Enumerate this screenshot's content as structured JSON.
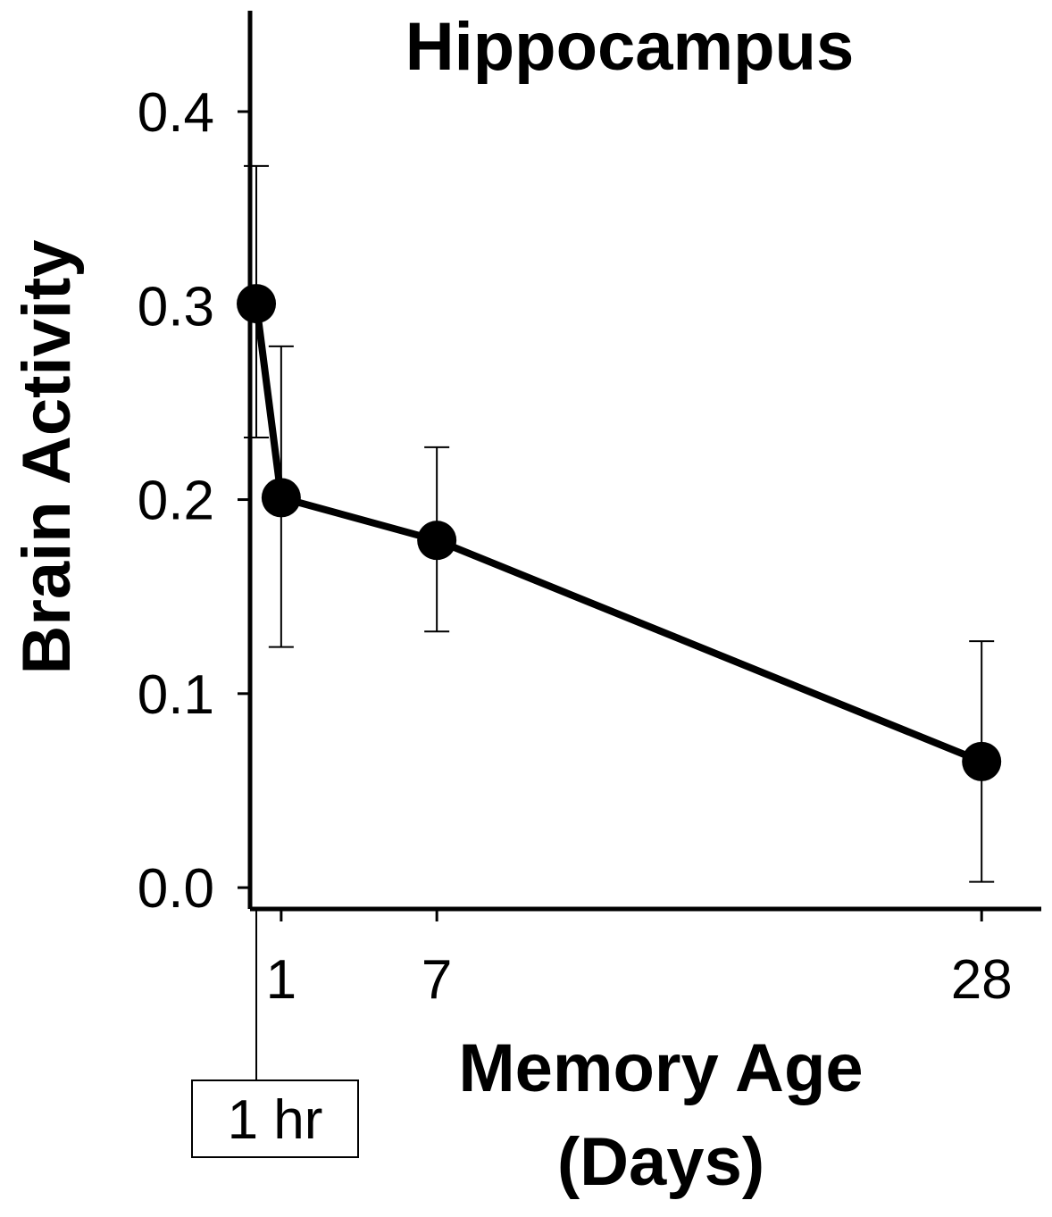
{
  "chart_data": {
    "type": "line",
    "title": "Hippocampus",
    "xlabel": [
      "Memory Age",
      "(Days)"
    ],
    "ylabel": "Brain Activity",
    "x_tick_labels": [
      "1",
      "7",
      "28"
    ],
    "x_ticks": [
      1,
      7,
      28
    ],
    "y_ticks": [
      0.0,
      0.1,
      0.2,
      0.3,
      0.4
    ],
    "y_tick_labels": [
      "0.0",
      "0.1",
      "0.2",
      "0.3",
      "0.4"
    ],
    "xlim": [
      -0.2,
      30.3
    ],
    "ylim": [
      -0.011,
      0.452
    ],
    "grid": false,
    "callout": {
      "label": "1 hr",
      "x": 0.0417
    },
    "series": [
      {
        "points": [
          {
            "x": 0.0417,
            "y": 0.301,
            "err_low": 0.232,
            "err_high": 0.372
          },
          {
            "x": 1,
            "y": 0.201,
            "err_low": 0.124,
            "err_high": 0.279
          },
          {
            "x": 7,
            "y": 0.179,
            "err_low": 0.132,
            "err_high": 0.227
          },
          {
            "x": 28,
            "y": 0.065,
            "err_low": 0.003,
            "err_high": 0.127
          }
        ],
        "color": "#000000"
      }
    ]
  }
}
